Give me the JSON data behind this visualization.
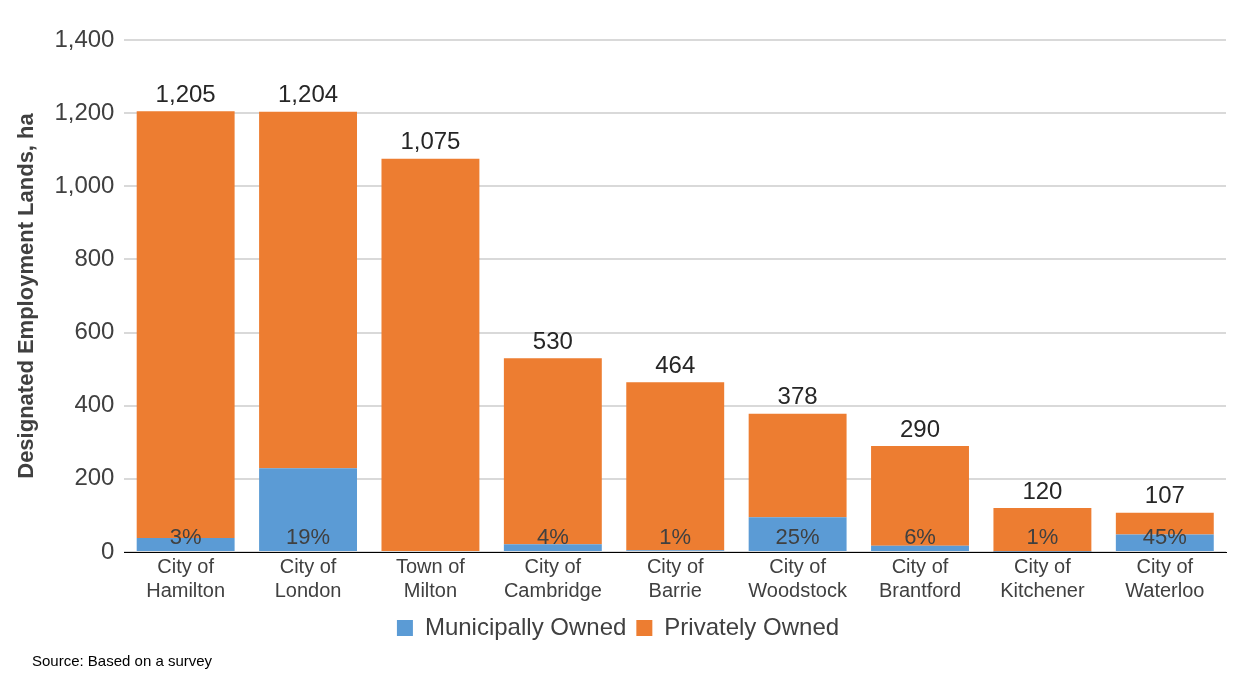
{
  "chart_data": {
    "type": "bar",
    "stacked": true,
    "ylabel": "Designated Employment Lands, ha",
    "categories": [
      "City of Hamilton",
      "City of London",
      "Town of Milton",
      "City of Cambridge",
      "City of Barrie",
      "City of Woodstock",
      "City of Brantford",
      "City of Kitchener",
      "City of Waterloo"
    ],
    "series": [
      {
        "name": "Municipally Owned",
        "color": "#5b9bd5",
        "values": [
          38,
          229,
          0,
          21,
          5,
          95,
          17,
          1,
          48
        ]
      },
      {
        "name": "Privately Owned",
        "color": "#ed7d31",
        "values": [
          1167,
          975,
          1075,
          509,
          459,
          283,
          273,
          119,
          59
        ]
      }
    ],
    "totals": [
      "1,205",
      "1,204",
      "1,075",
      "530",
      "464",
      "378",
      "290",
      "120",
      "107"
    ],
    "ylim": [
      0,
      1400
    ],
    "yticks": [
      0,
      200,
      400,
      600,
      800,
      {
        "value": 1000,
        "label": "1,000"
      },
      {
        "value": 1200,
        "label": "1,200"
      },
      {
        "value": 1400,
        "label": "1,400"
      }
    ],
    "grid": "y",
    "legend": "bottom",
    "annotations": [
      "Source: Based on a survey",
      {
        "text": "3%",
        "x": "City of Hamilton",
        "y": 0
      },
      {
        "text": "19%",
        "x": "City of London",
        "y": 0
      },
      {
        "text": "4%",
        "x": "City of Cambridge",
        "y": 0
      },
      {
        "text": "1%",
        "x": "City of Barrie",
        "y": 0
      },
      {
        "text": "25%",
        "x": "City of Woodstock",
        "y": 0
      },
      {
        "text": "6%",
        "x": "City of Brantford",
        "y": 0
      },
      {
        "text": "1%",
        "x": "City of Kitchener",
        "y": 0
      },
      {
        "text": "45%",
        "x": "City of Waterloo",
        "y": 0
      }
    ]
  }
}
